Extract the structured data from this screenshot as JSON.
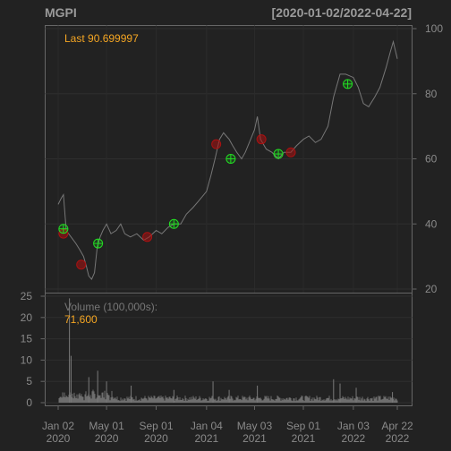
{
  "header": {
    "symbol": "MGPI",
    "date_range": "[2020-01-02/2022-04-22]"
  },
  "price_panel": {
    "last_label": "Last 90.699997",
    "y_ticks": [
      20,
      40,
      60,
      80,
      100
    ]
  },
  "volume_panel": {
    "label": "Volume (100,000s):",
    "value": "71,600",
    "y_ticks": [
      0,
      5,
      10,
      15,
      20,
      25
    ]
  },
  "x_ticks": [
    {
      "line1": "Jan 02",
      "line2": "2020",
      "date": "2020-01-02"
    },
    {
      "line1": "May 01",
      "line2": "2020",
      "date": "2020-05-01"
    },
    {
      "line1": "Sep 01",
      "line2": "2020",
      "date": "2020-09-01"
    },
    {
      "line1": "Jan 04",
      "line2": "2021",
      "date": "2021-01-04"
    },
    {
      "line1": "May 03",
      "line2": "2021",
      "date": "2021-05-03"
    },
    {
      "line1": "Sep 01",
      "line2": "2021",
      "date": "2021-09-01"
    },
    {
      "line1": "Jan 03",
      "line2": "2022",
      "date": "2022-01-03"
    },
    {
      "line1": "Apr 22",
      "line2": "2022",
      "date": "2022-04-22"
    }
  ],
  "colors": {
    "background": "#222222",
    "panel_border": "#666666",
    "text": "#8a8a8a",
    "header_text": "#9a9a9a",
    "last_label": "#f5a623",
    "series": "#777777",
    "buy_marker": "#22dd22",
    "sell_marker": "#aa1111"
  },
  "chart_data": {
    "type": "line",
    "title": "MGPI",
    "range": "[2020-01-02/2022-04-22]",
    "price": {
      "ylim": [
        20,
        100
      ],
      "series": [
        {
          "name": "MGPI",
          "points": [
            [
              "2020-01-02",
              46
            ],
            [
              "2020-01-10",
              48
            ],
            [
              "2020-01-15",
              49
            ],
            [
              "2020-01-22",
              38
            ],
            [
              "2020-02-03",
              36
            ],
            [
              "2020-02-15",
              34
            ],
            [
              "2020-02-25",
              32
            ],
            [
              "2020-03-05",
              30
            ],
            [
              "2020-03-12",
              27
            ],
            [
              "2020-03-18",
              24
            ],
            [
              "2020-03-25",
              23
            ],
            [
              "2020-04-01",
              25
            ],
            [
              "2020-04-08",
              33
            ],
            [
              "2020-04-15",
              36
            ],
            [
              "2020-04-22",
              38
            ],
            [
              "2020-05-01",
              40
            ],
            [
              "2020-05-12",
              37
            ],
            [
              "2020-05-25",
              38
            ],
            [
              "2020-06-05",
              40
            ],
            [
              "2020-06-15",
              37
            ],
            [
              "2020-06-29",
              36
            ],
            [
              "2020-07-15",
              37
            ],
            [
              "2020-08-01",
              35
            ],
            [
              "2020-08-15",
              36
            ],
            [
              "2020-09-01",
              38
            ],
            [
              "2020-09-15",
              37
            ],
            [
              "2020-10-01",
              39
            ],
            [
              "2020-10-15",
              40
            ],
            [
              "2020-11-01",
              40
            ],
            [
              "2020-11-15",
              43
            ],
            [
              "2020-12-01",
              45
            ],
            [
              "2020-12-15",
              47
            ],
            [
              "2021-01-04",
              50
            ],
            [
              "2021-01-15",
              55
            ],
            [
              "2021-01-25",
              60
            ],
            [
              "2021-02-05",
              66
            ],
            [
              "2021-02-15",
              68
            ],
            [
              "2021-03-01",
              66
            ],
            [
              "2021-03-10",
              64
            ],
            [
              "2021-03-20",
              62
            ],
            [
              "2021-04-01",
              60
            ],
            [
              "2021-04-10",
              62
            ],
            [
              "2021-04-20",
              65
            ],
            [
              "2021-05-03",
              69
            ],
            [
              "2021-05-10",
              73
            ],
            [
              "2021-05-18",
              66
            ],
            [
              "2021-06-01",
              63
            ],
            [
              "2021-06-15",
              62
            ],
            [
              "2021-07-01",
              60
            ],
            [
              "2021-07-15",
              62
            ],
            [
              "2021-08-01",
              62
            ],
            [
              "2021-08-15",
              64
            ],
            [
              "2021-09-01",
              66
            ],
            [
              "2021-09-15",
              67
            ],
            [
              "2021-10-01",
              65
            ],
            [
              "2021-10-15",
              66
            ],
            [
              "2021-11-01",
              70
            ],
            [
              "2021-11-15",
              79
            ],
            [
              "2021-12-01",
              86
            ],
            [
              "2021-12-15",
              86
            ],
            [
              "2022-01-03",
              85
            ],
            [
              "2022-01-15",
              82
            ],
            [
              "2022-01-28",
              77
            ],
            [
              "2022-02-10",
              76
            ],
            [
              "2022-02-25",
              79
            ],
            [
              "2022-03-10",
              82
            ],
            [
              "2022-03-25",
              88
            ],
            [
              "2022-04-05",
              93
            ],
            [
              "2022-04-12",
              96
            ],
            [
              "2022-04-22",
              90.7
            ]
          ]
        }
      ],
      "buy_signals": [
        [
          "2020-01-15",
          38.5
        ],
        [
          "2020-04-10",
          34
        ],
        [
          "2020-10-15",
          40
        ],
        [
          "2021-03-05",
          60
        ],
        [
          "2021-07-01",
          61.5
        ],
        [
          "2021-12-20",
          83
        ]
      ],
      "sell_signals": [
        [
          "2020-01-15",
          37
        ],
        [
          "2020-02-28",
          27.5
        ],
        [
          "2020-08-10",
          36
        ],
        [
          "2021-01-28",
          64.5
        ],
        [
          "2021-05-20",
          66
        ],
        [
          "2021-08-01",
          62
        ]
      ]
    },
    "volume": {
      "unit": "100,000s",
      "ylim": [
        0,
        25
      ],
      "last": 71600,
      "spikes": [
        [
          "2020-01-30",
          24.5
        ],
        [
          "2020-02-03",
          11
        ],
        [
          "2020-03-18",
          6
        ],
        [
          "2020-04-09",
          7.5
        ],
        [
          "2020-05-01",
          5
        ],
        [
          "2020-07-01",
          4
        ],
        [
          "2020-10-15",
          3
        ],
        [
          "2021-01-20",
          5
        ],
        [
          "2021-03-01",
          3
        ],
        [
          "2021-05-10",
          4
        ],
        [
          "2021-11-15",
          5.5
        ],
        [
          "2021-12-01",
          4.5
        ],
        [
          "2022-01-10",
          3.5
        ],
        [
          "2022-04-10",
          2.5
        ]
      ]
    }
  }
}
